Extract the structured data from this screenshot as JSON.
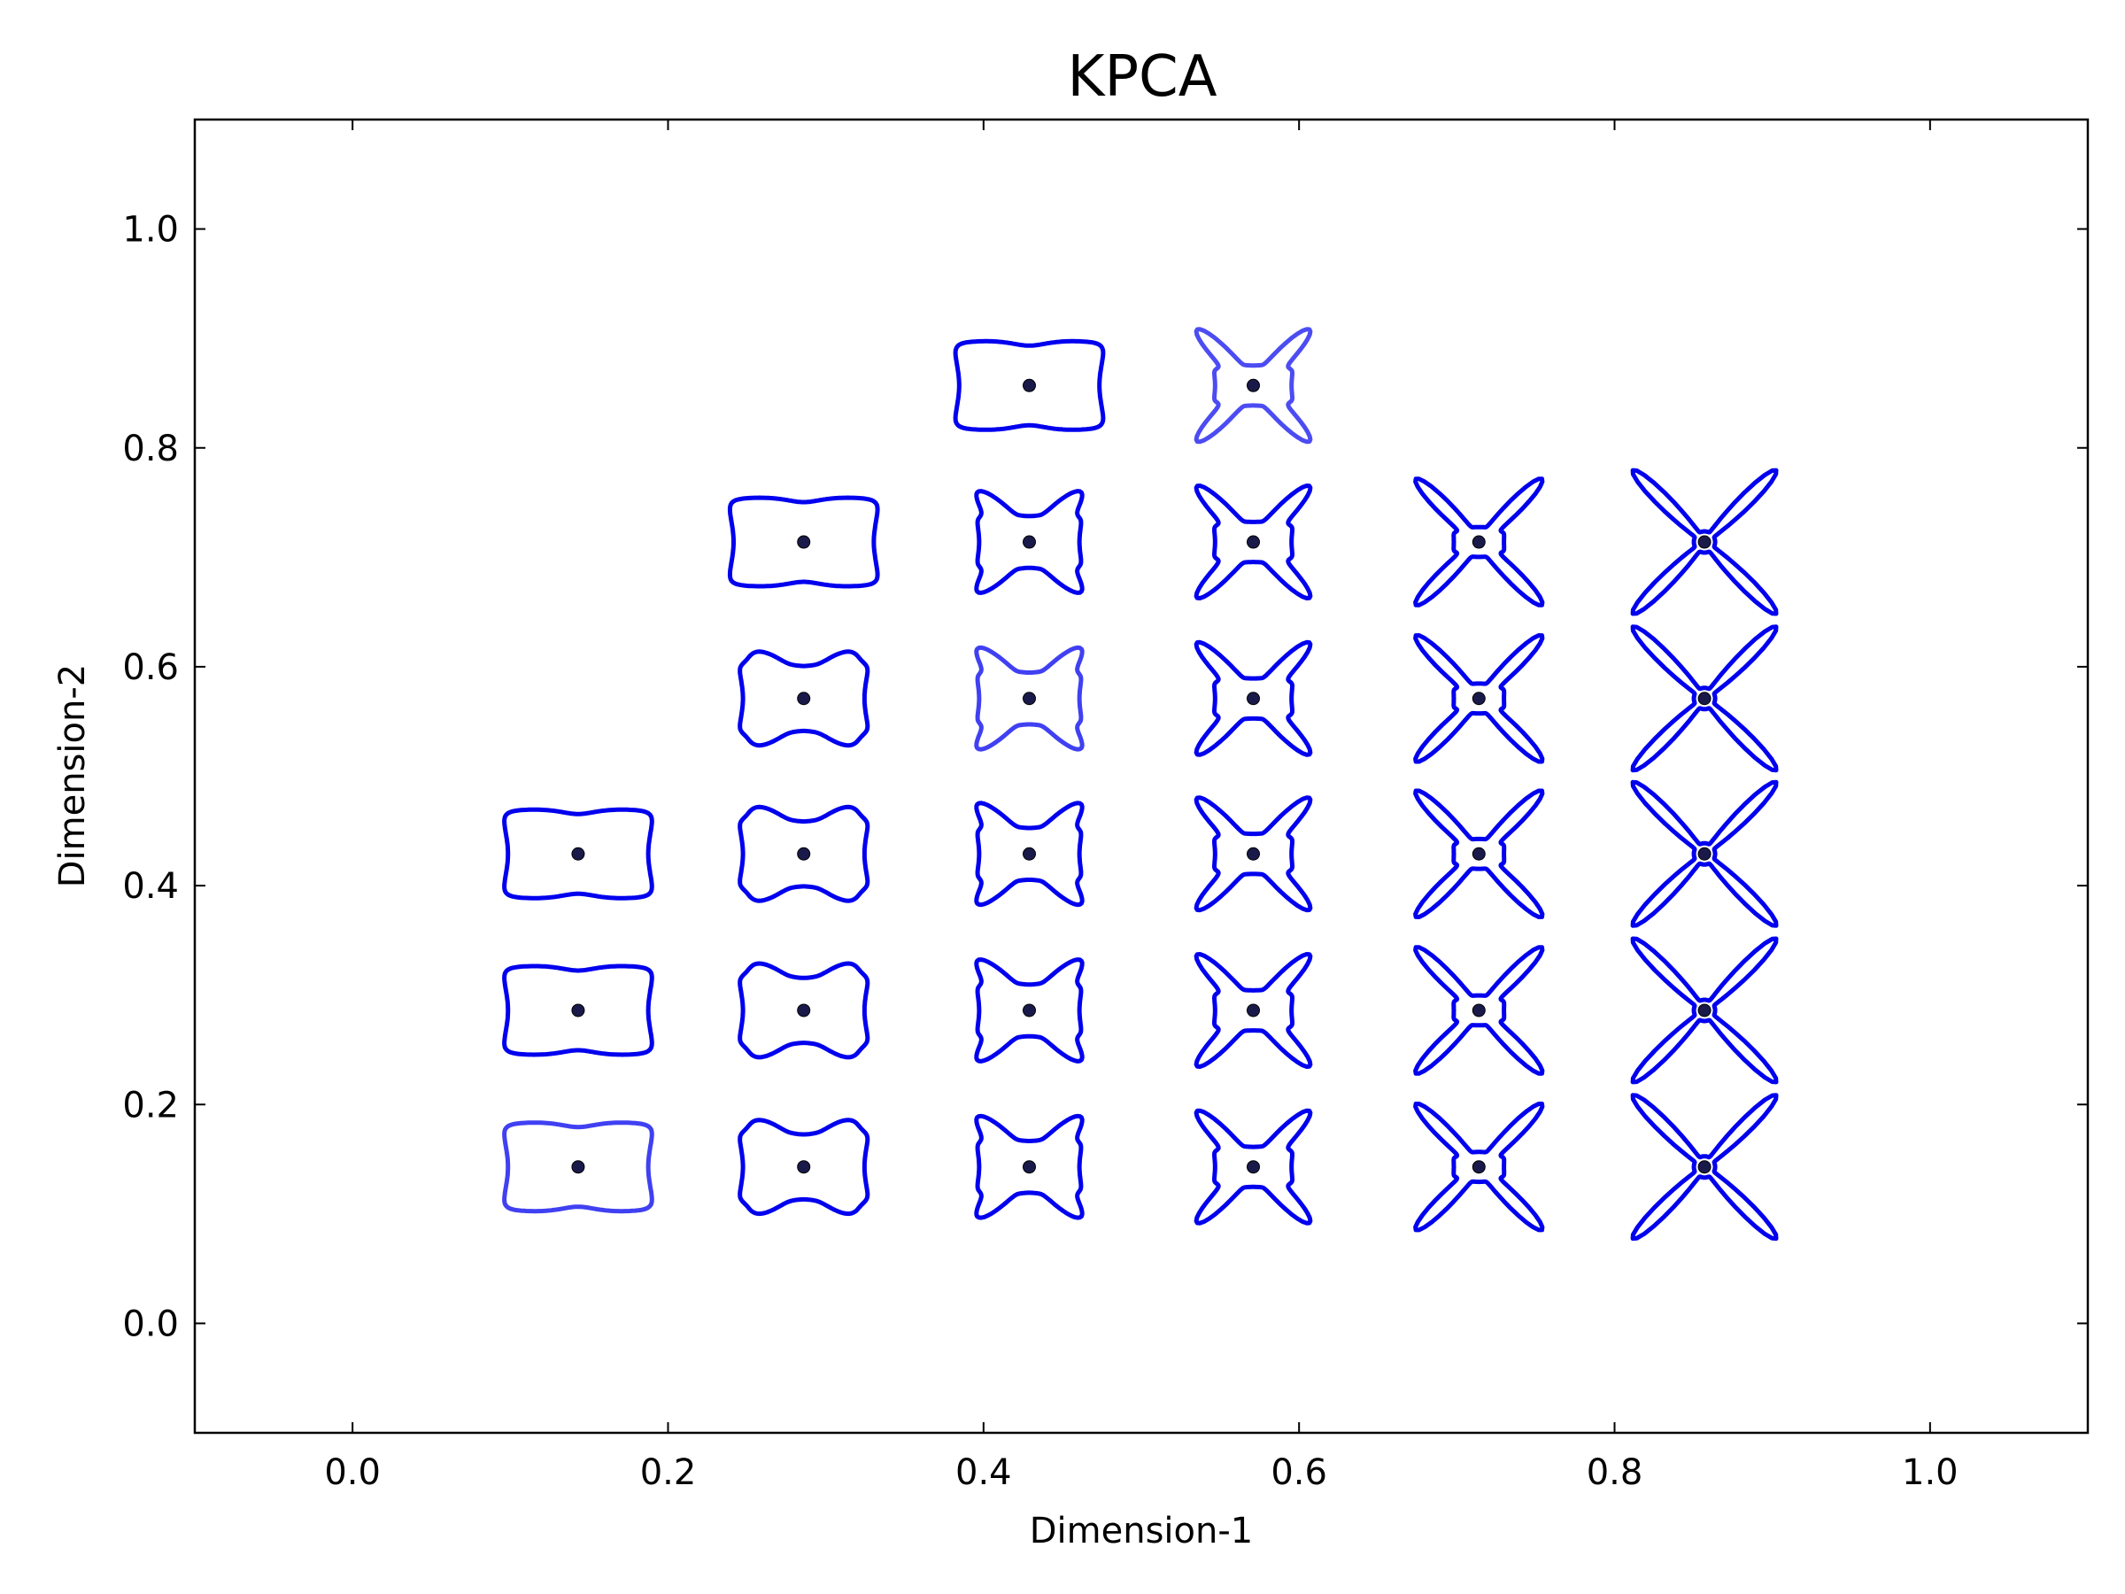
{
  "chart_data": {
    "type": "scatter",
    "title": "KPCA",
    "xlabel": "Dimension-1",
    "ylabel": "Dimension-2",
    "xlim": [
      -0.1,
      1.1
    ],
    "ylim": [
      -0.1,
      1.1
    ],
    "xticks": [
      "0.0",
      "0.2",
      "0.4",
      "0.6",
      "0.8",
      "1.0"
    ],
    "yticks": [
      "0.0",
      "0.2",
      "0.4",
      "0.6",
      "0.8",
      "1.0"
    ],
    "grid": false,
    "marker_color": "#1a1a4a",
    "glyph_color": "#0000ee",
    "points": [
      {
        "x": 0.143,
        "y": 0.143,
        "shape": 0.0,
        "opacity": 0.75
      },
      {
        "x": 0.286,
        "y": 0.143,
        "shape": 0.2,
        "opacity": 1.0
      },
      {
        "x": 0.429,
        "y": 0.143,
        "shape": 0.4,
        "opacity": 1.0
      },
      {
        "x": 0.571,
        "y": 0.143,
        "shape": 0.6,
        "opacity": 1.0
      },
      {
        "x": 0.714,
        "y": 0.143,
        "shape": 0.8,
        "opacity": 1.0
      },
      {
        "x": 0.857,
        "y": 0.143,
        "shape": 1.0,
        "opacity": 1.0
      },
      {
        "x": 0.143,
        "y": 0.286,
        "shape": 0.0,
        "opacity": 1.0
      },
      {
        "x": 0.286,
        "y": 0.286,
        "shape": 0.2,
        "opacity": 1.0
      },
      {
        "x": 0.429,
        "y": 0.286,
        "shape": 0.4,
        "opacity": 1.0
      },
      {
        "x": 0.571,
        "y": 0.286,
        "shape": 0.6,
        "opacity": 1.0
      },
      {
        "x": 0.714,
        "y": 0.286,
        "shape": 0.8,
        "opacity": 1.0
      },
      {
        "x": 0.857,
        "y": 0.286,
        "shape": 1.0,
        "opacity": 1.0
      },
      {
        "x": 0.143,
        "y": 0.429,
        "shape": 0.0,
        "opacity": 1.0
      },
      {
        "x": 0.286,
        "y": 0.429,
        "shape": 0.2,
        "opacity": 1.0
      },
      {
        "x": 0.429,
        "y": 0.429,
        "shape": 0.4,
        "opacity": 1.0
      },
      {
        "x": 0.571,
        "y": 0.429,
        "shape": 0.6,
        "opacity": 1.0
      },
      {
        "x": 0.714,
        "y": 0.429,
        "shape": 0.8,
        "opacity": 1.0
      },
      {
        "x": 0.857,
        "y": 0.429,
        "shape": 1.0,
        "opacity": 1.0
      },
      {
        "x": 0.286,
        "y": 0.571,
        "shape": 0.2,
        "opacity": 1.0
      },
      {
        "x": 0.429,
        "y": 0.571,
        "shape": 0.4,
        "opacity": 0.75
      },
      {
        "x": 0.571,
        "y": 0.571,
        "shape": 0.6,
        "opacity": 1.0
      },
      {
        "x": 0.714,
        "y": 0.571,
        "shape": 0.8,
        "opacity": 1.0
      },
      {
        "x": 0.857,
        "y": 0.571,
        "shape": 1.0,
        "opacity": 1.0
      },
      {
        "x": 0.286,
        "y": 0.714,
        "shape": 0.0,
        "opacity": 1.0
      },
      {
        "x": 0.429,
        "y": 0.714,
        "shape": 0.4,
        "opacity": 1.0
      },
      {
        "x": 0.571,
        "y": 0.714,
        "shape": 0.6,
        "opacity": 1.0
      },
      {
        "x": 0.714,
        "y": 0.714,
        "shape": 0.8,
        "opacity": 1.0
      },
      {
        "x": 0.857,
        "y": 0.714,
        "shape": 1.0,
        "opacity": 1.0
      },
      {
        "x": 0.429,
        "y": 0.857,
        "shape": 0.0,
        "opacity": 1.0
      },
      {
        "x": 0.571,
        "y": 0.857,
        "shape": 0.6,
        "opacity": 0.7
      }
    ]
  }
}
